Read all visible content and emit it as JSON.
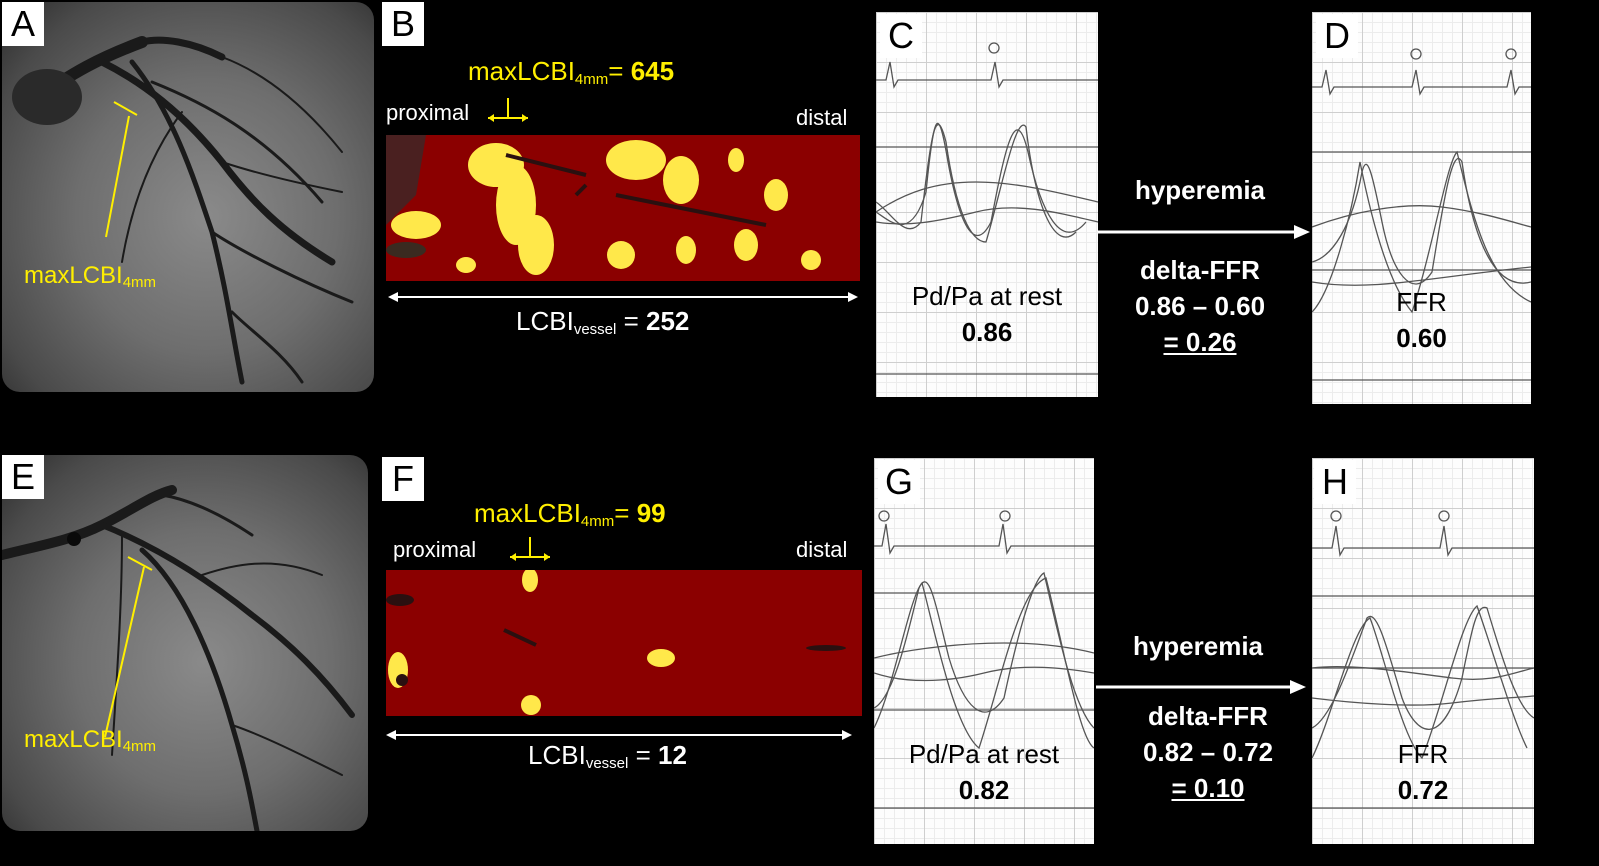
{
  "panels": {
    "top": {
      "letters": [
        "A",
        "B",
        "C",
        "D"
      ],
      "angio_label_main": "maxLCBI",
      "angio_label_sub": "4mm",
      "heatmap_title_main": "maxLCBI",
      "heatmap_title_sub": "4mm",
      "heatmap_title_eq": "= ",
      "heatmap_title_value": "645",
      "proximal": "proximal",
      "distal": "distal",
      "lcbi_main": "LCBI",
      "lcbi_sub": "vessel",
      "lcbi_eq": " = ",
      "lcbi_value": "252",
      "rest_label": "Pd/Pa at rest",
      "rest_value": "0.86",
      "hyperemia": "hyperemia",
      "delta_title": "delta-FFR",
      "delta_expr": "0.86 – 0.60",
      "delta_result": "= 0.26",
      "ffr_label": "FFR",
      "ffr_value": "0.60"
    },
    "bottom": {
      "letters": [
        "E",
        "F",
        "G",
        "H"
      ],
      "angio_label_main": "maxLCBI",
      "angio_label_sub": "4mm",
      "heatmap_title_main": "maxLCBI",
      "heatmap_title_sub": "4mm",
      "heatmap_title_eq": "= ",
      "heatmap_title_value": "99",
      "proximal": "proximal",
      "distal": "distal",
      "lcbi_main": "LCBI",
      "lcbi_sub": "vessel",
      "lcbi_eq": " = ",
      "lcbi_value": "12",
      "rest_label": "Pd/Pa at rest",
      "rest_value": "0.82",
      "hyperemia": "hyperemia",
      "delta_title": "delta-FFR",
      "delta_expr": "0.82 – 0.72",
      "delta_result": "= 0.10",
      "ffr_label": "FFR",
      "ffr_value": "0.72"
    }
  },
  "colors": {
    "highlight": "#ffef00",
    "heatmap_bg": "#8b0000",
    "background": "#000000"
  }
}
